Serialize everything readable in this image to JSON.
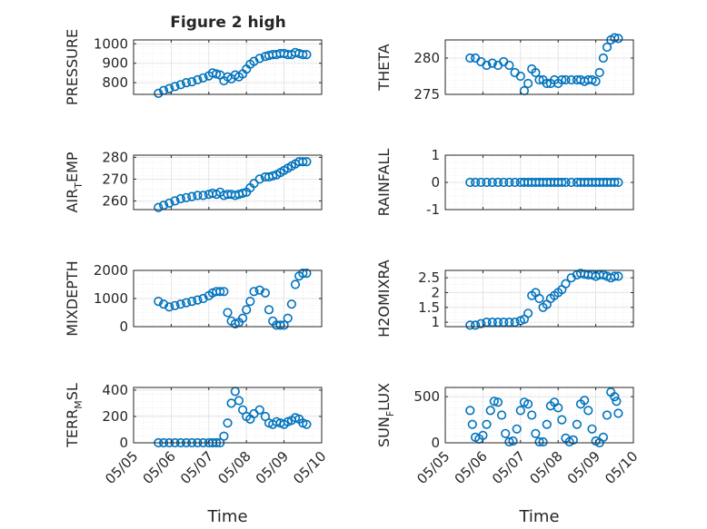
{
  "figure_title": "Figure 2 high",
  "colors": {
    "marker": "#0072BD",
    "axis": "#262626",
    "grid": "#DFDFDF"
  },
  "chart_data": [
    {
      "type": "scatter",
      "ylabel": "PRESSURE",
      "xlabel": "",
      "xlim": [
        0,
        5
      ],
      "ylim": [
        740,
        1020
      ],
      "yticks": [
        800,
        900,
        1000
      ],
      "ytick_labels": [
        "800",
        "900",
        "1000"
      ],
      "xticks": [
        0,
        1,
        2,
        3,
        4,
        5
      ],
      "xtick_labels": [],
      "grid": true,
      "x": [
        0.66,
        0.8,
        0.95,
        1.1,
        1.25,
        1.4,
        1.55,
        1.7,
        1.85,
        2.0,
        2.1,
        2.2,
        2.3,
        2.4,
        2.5,
        2.6,
        2.7,
        2.8,
        2.9,
        3.0,
        3.1,
        3.2,
        3.35,
        3.5,
        3.6,
        3.7,
        3.8,
        3.9,
        4.0,
        4.1,
        4.2,
        4.3,
        4.4,
        4.5,
        4.6
      ],
      "y": [
        745,
        760,
        770,
        780,
        790,
        800,
        805,
        815,
        825,
        835,
        850,
        845,
        840,
        810,
        830,
        820,
        840,
        830,
        845,
        870,
        895,
        910,
        925,
        935,
        940,
        945,
        945,
        950,
        950,
        945,
        945,
        955,
        950,
        945,
        945
      ]
    },
    {
      "type": "scatter",
      "ylabel": "THETA",
      "xlabel": "",
      "xlim": [
        0,
        5
      ],
      "ylim": [
        275,
        282.5
      ],
      "yticks": [
        275,
        280
      ],
      "ytick_labels": [
        "275",
        "280"
      ],
      "xticks": [
        0,
        1,
        2,
        3,
        4,
        5
      ],
      "xtick_labels": [],
      "grid": true,
      "x": [
        0.66,
        0.8,
        0.95,
        1.1,
        1.25,
        1.4,
        1.55,
        1.7,
        1.85,
        2.0,
        2.1,
        2.2,
        2.3,
        2.4,
        2.5,
        2.6,
        2.7,
        2.8,
        2.9,
        3.0,
        3.1,
        3.2,
        3.35,
        3.5,
        3.6,
        3.7,
        3.8,
        3.9,
        4.0,
        4.1,
        4.2,
        4.3,
        4.4,
        4.5,
        4.6
      ],
      "y": [
        280,
        280,
        279.5,
        279,
        279.3,
        279,
        279.5,
        279,
        278,
        277.5,
        275.5,
        276.5,
        278.5,
        278,
        277,
        277,
        276.5,
        276.5,
        277,
        276.5,
        277,
        277,
        277,
        277,
        277,
        276.8,
        277,
        277,
        276.8,
        278,
        280,
        281.5,
        282.5,
        282.8,
        282.7
      ]
    },
    {
      "type": "scatter",
      "ylabel": "AIR_TEMP",
      "xlabel": "",
      "xlim": [
        0,
        5
      ],
      "ylim": [
        256,
        281
      ],
      "yticks": [
        260,
        270,
        280
      ],
      "ytick_labels": [
        "260",
        "270",
        "280"
      ],
      "xticks": [
        0,
        1,
        2,
        3,
        4,
        5
      ],
      "xtick_labels": [],
      "grid": true,
      "x": [
        0.66,
        0.8,
        0.95,
        1.1,
        1.25,
        1.4,
        1.55,
        1.7,
        1.85,
        2.0,
        2.1,
        2.2,
        2.3,
        2.4,
        2.5,
        2.6,
        2.7,
        2.8,
        2.9,
        3.0,
        3.1,
        3.2,
        3.35,
        3.5,
        3.6,
        3.7,
        3.8,
        3.9,
        4.0,
        4.1,
        4.2,
        4.3,
        4.4,
        4.5,
        4.6
      ],
      "y": [
        257,
        258,
        259,
        260,
        261,
        261.5,
        262,
        262.5,
        262.5,
        263,
        263.5,
        263,
        264,
        262.5,
        263,
        263,
        262.5,
        263,
        263.5,
        264,
        266,
        268,
        270,
        271,
        271,
        271.5,
        272,
        273,
        274,
        275,
        276,
        277,
        278,
        278,
        278
      ]
    },
    {
      "type": "scatter",
      "ylabel": "RAINFALL",
      "xlabel": "",
      "xlim": [
        0,
        5
      ],
      "ylim": [
        -1,
        1
      ],
      "yticks": [
        -1,
        0,
        1
      ],
      "ytick_labels": [
        "-1",
        "0",
        "1"
      ],
      "xticks": [
        0,
        1,
        2,
        3,
        4,
        5
      ],
      "xtick_labels": [],
      "grid": true,
      "x": [
        0.66,
        0.8,
        0.95,
        1.1,
        1.25,
        1.4,
        1.55,
        1.7,
        1.85,
        2.0,
        2.1,
        2.2,
        2.3,
        2.4,
        2.5,
        2.6,
        2.7,
        2.8,
        2.9,
        3.0,
        3.1,
        3.2,
        3.35,
        3.5,
        3.6,
        3.7,
        3.8,
        3.9,
        4.0,
        4.1,
        4.2,
        4.3,
        4.4,
        4.5,
        4.6
      ],
      "y": [
        0,
        0,
        0,
        0,
        0,
        0,
        0,
        0,
        0,
        0,
        0,
        0,
        0,
        0,
        0,
        0,
        0,
        0,
        0,
        0,
        0,
        0,
        0,
        0,
        0,
        0,
        0,
        0,
        0,
        0,
        0,
        0,
        0,
        0,
        0
      ]
    },
    {
      "type": "scatter",
      "ylabel": "MIXDEPTH",
      "xlabel": "",
      "xlim": [
        0,
        5
      ],
      "ylim": [
        0,
        2000
      ],
      "yticks": [
        0,
        1000,
        2000
      ],
      "ytick_labels": [
        "0",
        "1000",
        "2000"
      ],
      "xticks": [
        0,
        1,
        2,
        3,
        4,
        5
      ],
      "xtick_labels": [],
      "grid": true,
      "x": [
        0.66,
        0.8,
        0.95,
        1.1,
        1.25,
        1.4,
        1.55,
        1.7,
        1.85,
        2.0,
        2.1,
        2.2,
        2.3,
        2.4,
        2.5,
        2.6,
        2.7,
        2.8,
        2.9,
        3.0,
        3.1,
        3.2,
        3.35,
        3.5,
        3.6,
        3.7,
        3.8,
        3.9,
        4.0,
        4.1,
        4.2,
        4.3,
        4.4,
        4.5,
        4.6
      ],
      "y": [
        900,
        800,
        700,
        750,
        800,
        850,
        900,
        950,
        1000,
        1100,
        1200,
        1250,
        1250,
        1250,
        500,
        200,
        100,
        150,
        300,
        600,
        900,
        1250,
        1300,
        1200,
        600,
        200,
        50,
        50,
        50,
        300,
        800,
        1500,
        1800,
        1900,
        1900
      ]
    },
    {
      "type": "scatter",
      "ylabel": "H2OMIXRA",
      "xlabel": "",
      "xlim": [
        0,
        5
      ],
      "ylim": [
        0.85,
        2.75
      ],
      "yticks": [
        1,
        1.5,
        2,
        2.5
      ],
      "ytick_labels": [
        "1",
        "1.5",
        "2",
        "2.5"
      ],
      "xticks": [
        0,
        1,
        2,
        3,
        4,
        5
      ],
      "xtick_labels": [],
      "grid": true,
      "x": [
        0.66,
        0.8,
        0.95,
        1.1,
        1.25,
        1.4,
        1.55,
        1.7,
        1.85,
        2.0,
        2.1,
        2.2,
        2.3,
        2.4,
        2.5,
        2.6,
        2.7,
        2.8,
        2.9,
        3.0,
        3.1,
        3.2,
        3.35,
        3.5,
        3.6,
        3.7,
        3.8,
        3.9,
        4.0,
        4.1,
        4.2,
        4.3,
        4.4,
        4.5,
        4.6
      ],
      "y": [
        0.9,
        0.9,
        0.95,
        1.0,
        1.0,
        1.0,
        1.0,
        1.0,
        1.0,
        1.05,
        1.1,
        1.3,
        1.9,
        2.0,
        1.8,
        1.5,
        1.6,
        1.8,
        1.9,
        2.0,
        2.1,
        2.3,
        2.5,
        2.6,
        2.65,
        2.62,
        2.6,
        2.6,
        2.55,
        2.6,
        2.6,
        2.55,
        2.5,
        2.55,
        2.55
      ]
    },
    {
      "type": "scatter",
      "ylabel": "TERR_MSL",
      "xlabel": "Time",
      "xlim": [
        0,
        5
      ],
      "ylim": [
        0,
        420
      ],
      "yticks": [
        0,
        200,
        400
      ],
      "ytick_labels": [
        "0",
        "200",
        "400"
      ],
      "xticks": [
        0,
        1,
        2,
        3,
        4,
        5
      ],
      "xtick_labels": [
        "05/05",
        "05/06",
        "05/07",
        "05/08",
        "05/09",
        "05/10"
      ],
      "grid": true,
      "x": [
        0.66,
        0.8,
        0.95,
        1.1,
        1.25,
        1.4,
        1.55,
        1.7,
        1.85,
        2.0,
        2.1,
        2.2,
        2.3,
        2.4,
        2.5,
        2.6,
        2.7,
        2.8,
        2.9,
        3.0,
        3.1,
        3.2,
        3.35,
        3.5,
        3.6,
        3.7,
        3.8,
        3.9,
        4.0,
        4.1,
        4.2,
        4.3,
        4.4,
        4.5,
        4.6
      ],
      "y": [
        0,
        0,
        0,
        0,
        0,
        0,
        0,
        0,
        0,
        0,
        0,
        0,
        0,
        50,
        150,
        300,
        390,
        320,
        250,
        200,
        180,
        220,
        250,
        200,
        150,
        140,
        160,
        150,
        140,
        160,
        170,
        190,
        180,
        150,
        140
      ]
    },
    {
      "type": "scatter",
      "ylabel": "SUN_FLUX",
      "xlabel": "Time",
      "xlim": [
        0,
        5
      ],
      "ylim": [
        0,
        600
      ],
      "yticks": [
        0,
        500
      ],
      "ytick_labels": [
        "0",
        "500"
      ],
      "xticks": [
        0,
        1,
        2,
        3,
        4,
        5
      ],
      "xtick_labels": [
        "05/05",
        "05/06",
        "05/07",
        "05/08",
        "05/09",
        "05/10"
      ],
      "grid": true,
      "x": [
        0.66,
        0.72,
        0.8,
        0.9,
        1.0,
        1.1,
        1.2,
        1.3,
        1.4,
        1.5,
        1.6,
        1.7,
        1.8,
        1.9,
        2.0,
        2.1,
        2.2,
        2.3,
        2.4,
        2.5,
        2.6,
        2.7,
        2.8,
        2.9,
        3.0,
        3.1,
        3.2,
        3.3,
        3.4,
        3.5,
        3.6,
        3.7,
        3.8,
        3.9,
        4.0,
        4.1,
        4.2,
        4.3,
        4.4,
        4.5,
        4.55,
        4.6
      ],
      "y": [
        350,
        200,
        60,
        40,
        80,
        200,
        350,
        450,
        440,
        300,
        100,
        10,
        20,
        150,
        350,
        440,
        420,
        300,
        100,
        10,
        10,
        200,
        400,
        440,
        380,
        250,
        50,
        10,
        30,
        200,
        420,
        460,
        350,
        150,
        20,
        0,
        60,
        300,
        550,
        500,
        450,
        320
      ]
    }
  ]
}
